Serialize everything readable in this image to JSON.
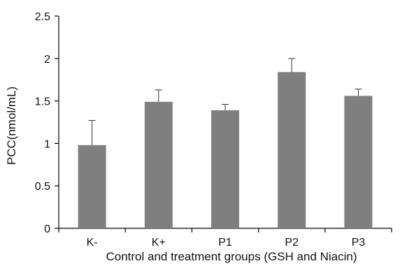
{
  "chart_data": {
    "type": "bar",
    "title": "",
    "xlabel": "Control and treatment groups (GSH and Niacin)",
    "ylabel": "PCC(nmol/mL)",
    "categories": [
      "K-",
      "K+",
      "P1",
      "P2",
      "P3"
    ],
    "values": [
      0.98,
      1.49,
      1.39,
      1.84,
      1.56
    ],
    "errors": [
      0.29,
      0.14,
      0.07,
      0.16,
      0.08
    ],
    "ylim": [
      0,
      2.5
    ],
    "yticks": [
      "0",
      "0.5",
      "1",
      "1.5",
      "2",
      "2.5"
    ],
    "bar_color": "#7f7f7f",
    "grid": false,
    "legend": "none"
  }
}
